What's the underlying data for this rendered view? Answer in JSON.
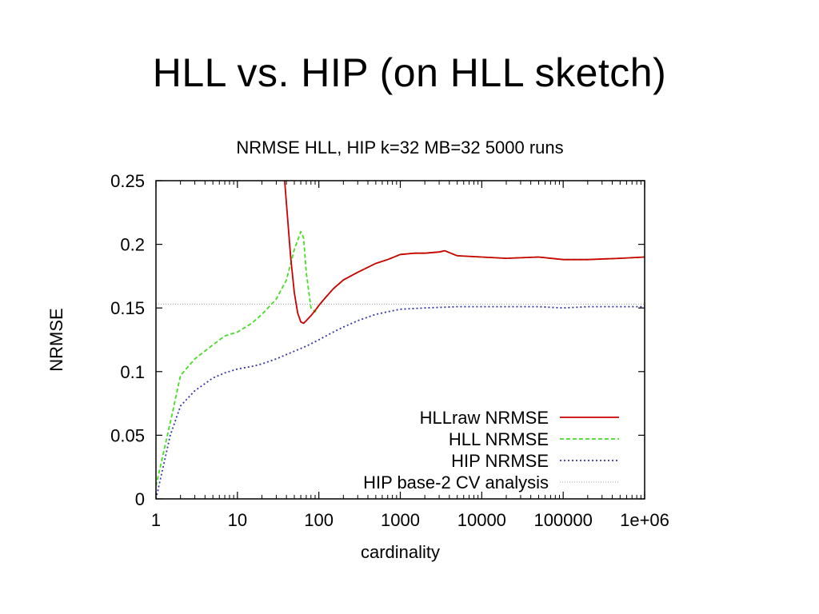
{
  "slide": {
    "title": "HLL vs. HIP (on HLL sketch)"
  },
  "chart_data": {
    "type": "line",
    "title": "NRMSE HLL, HIP k=32 MB=32   5000 runs",
    "xlabel": "cardinality",
    "ylabel": "NRMSE",
    "xscale": "log",
    "xlim": [
      1,
      1000000
    ],
    "ylim": [
      0,
      0.25
    ],
    "xticks": [
      {
        "value": 1,
        "label": "1"
      },
      {
        "value": 10,
        "label": "10"
      },
      {
        "value": 100,
        "label": "100"
      },
      {
        "value": 1000,
        "label": "1000"
      },
      {
        "value": 10000,
        "label": "10000"
      },
      {
        "value": 100000,
        "label": "100000"
      },
      {
        "value": 1000000,
        "label": "1e+06"
      }
    ],
    "yticks": [
      {
        "value": 0,
        "label": "0"
      },
      {
        "value": 0.05,
        "label": "0.05"
      },
      {
        "value": 0.1,
        "label": "0.1"
      },
      {
        "value": 0.15,
        "label": "0.15"
      },
      {
        "value": 0.2,
        "label": "0.2"
      },
      {
        "value": 0.25,
        "label": "0.25"
      }
    ],
    "legend_position": "bottom-right",
    "series": [
      {
        "name": "HLLraw NRMSE",
        "color": "#cc0000",
        "dash": "solid",
        "x": [
          38,
          45,
          50,
          55,
          60,
          65,
          70,
          80,
          90,
          100,
          120,
          150,
          200,
          300,
          500,
          700,
          1000,
          1500,
          2000,
          3000,
          3500,
          5000,
          10000,
          20000,
          50000,
          100000,
          200000,
          500000,
          1000000
        ],
        "y": [
          0.25,
          0.19,
          0.162,
          0.146,
          0.139,
          0.138,
          0.14,
          0.144,
          0.148,
          0.152,
          0.158,
          0.165,
          0.172,
          0.178,
          0.185,
          0.188,
          0.192,
          0.193,
          0.193,
          0.194,
          0.195,
          0.191,
          0.19,
          0.189,
          0.19,
          0.188,
          0.188,
          0.189,
          0.19
        ]
      },
      {
        "name": "HLL NRMSE",
        "color": "#44dd22",
        "dash": "dashed",
        "x": [
          1,
          1.5,
          2,
          3,
          5,
          7,
          10,
          15,
          20,
          30,
          40,
          50,
          60,
          65,
          70,
          80,
          90,
          100,
          120,
          150,
          200,
          300,
          500,
          700,
          1000,
          1500,
          2000,
          3000,
          3500,
          5000,
          10000,
          20000,
          50000,
          100000,
          200000,
          500000,
          1000000
        ],
        "y": [
          0.01,
          0.06,
          0.097,
          0.11,
          0.121,
          0.128,
          0.131,
          0.138,
          0.145,
          0.157,
          0.172,
          0.196,
          0.21,
          0.205,
          0.178,
          0.15,
          0.147,
          0.152,
          0.158,
          0.165,
          0.172,
          0.178,
          0.185,
          0.188,
          0.192,
          0.193,
          0.193,
          0.194,
          0.195,
          0.191,
          0.19,
          0.189,
          0.19,
          0.188,
          0.188,
          0.189,
          0.19
        ]
      },
      {
        "name": "HIP NRMSE",
        "color": "#3333aa",
        "dash": "dotted",
        "x": [
          1,
          1.5,
          2,
          3,
          5,
          7,
          10,
          15,
          20,
          30,
          50,
          70,
          100,
          150,
          200,
          300,
          500,
          700,
          1000,
          2000,
          5000,
          10000,
          20000,
          50000,
          100000,
          200000,
          500000,
          1000000
        ],
        "y": [
          0.0,
          0.05,
          0.073,
          0.085,
          0.095,
          0.099,
          0.102,
          0.104,
          0.106,
          0.11,
          0.116,
          0.12,
          0.125,
          0.131,
          0.135,
          0.14,
          0.145,
          0.147,
          0.149,
          0.15,
          0.151,
          0.151,
          0.151,
          0.151,
          0.15,
          0.151,
          0.151,
          0.151
        ]
      },
      {
        "name": "HIP base-2 CV analysis",
        "color": "#999999",
        "dash": "fine-dotted",
        "x": [
          1,
          1000000
        ],
        "y": [
          0.153,
          0.153
        ]
      }
    ]
  }
}
